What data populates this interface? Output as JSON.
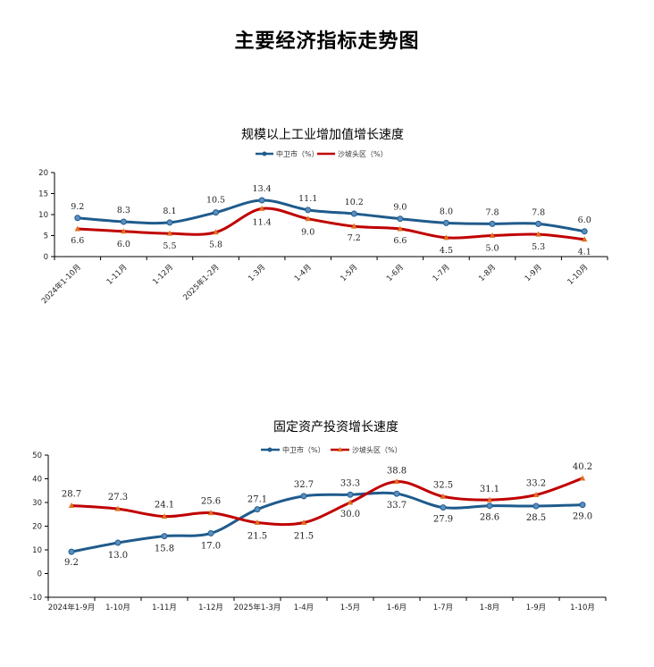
{
  "page_title": "主要经济指标走势图",
  "colors": {
    "zhongwei": "#1f5b8c",
    "shapotou": "#c00000",
    "axis": "#000000"
  },
  "chart_data": [
    {
      "type": "line",
      "title": "规模以上工业增加值增长速度",
      "categories": [
        "2024年1-10月",
        "1-11月",
        "1-12月",
        "2025年1-2月",
        "1-3月",
        "1-4月",
        "1-5月",
        "1-6月",
        "1-7月",
        "1-8月",
        "1-9月",
        "1-10月"
      ],
      "series": [
        {
          "name": "中卫市（%）",
          "values": [
            9.2,
            8.3,
            8.1,
            10.5,
            13.4,
            11.1,
            10.2,
            9.0,
            8.0,
            7.8,
            7.8,
            6.0
          ],
          "labels": [
            "9.2",
            "8.3",
            "8.1",
            "10.5",
            "13.4",
            "11.1",
            "10.2",
            "9.0",
            "8.0",
            "7.8",
            "7.8",
            "6.0"
          ]
        },
        {
          "name": "沙坡头区（%）",
          "values": [
            6.6,
            6.0,
            5.5,
            5.8,
            11.4,
            9.0,
            7.2,
            6.6,
            4.5,
            5.0,
            5.3,
            4.1
          ],
          "labels": [
            "6.6",
            "6.0",
            "5.5",
            "5.8",
            "11.4",
            "9.0",
            "7.2",
            "6.6",
            "4.5",
            "5.0",
            "5.3",
            "4.1"
          ]
        }
      ],
      "y_ticks": [
        "0",
        "5",
        "10",
        "15",
        "20"
      ],
      "ylim": [
        0,
        20
      ],
      "legend_position": "top-center",
      "grid": false
    },
    {
      "type": "line",
      "title": "固定资产投资增长速度",
      "categories": [
        "2024年1-9月",
        "1-10月",
        "1-11月",
        "1-12月",
        "2025年1-3月",
        "1-4月",
        "1-5月",
        "1-6月",
        "1-7月",
        "1-8月",
        "1-9月",
        "1-10月"
      ],
      "series": [
        {
          "name": "中卫市（%）",
          "values": [
            9.2,
            13.0,
            15.8,
            17.0,
            27.1,
            32.7,
            33.3,
            33.7,
            27.9,
            28.6,
            28.5,
            29.0
          ],
          "labels": [
            "9.2",
            "13.0",
            "15.8",
            "17.0",
            "27.1",
            "32.7",
            "33.3",
            "33.7",
            "27.9",
            "28.6",
            "28.5",
            "29.0"
          ]
        },
        {
          "name": "沙坡头区（%）",
          "values": [
            28.7,
            27.3,
            24.1,
            25.6,
            21.5,
            21.5,
            30.0,
            38.8,
            32.5,
            31.1,
            33.2,
            40.2
          ],
          "labels": [
            "28.7",
            "27.3",
            "24.1",
            "25.6",
            "21.5",
            "21.5",
            "30.0",
            "38.8",
            "32.5",
            "31.1",
            "33.2",
            "40.2"
          ]
        }
      ],
      "y_ticks": [
        "-10",
        "0",
        "10",
        "20",
        "30",
        "40",
        "50"
      ],
      "ylim": [
        -10,
        50
      ],
      "legend_position": "top-center",
      "grid": false
    }
  ]
}
